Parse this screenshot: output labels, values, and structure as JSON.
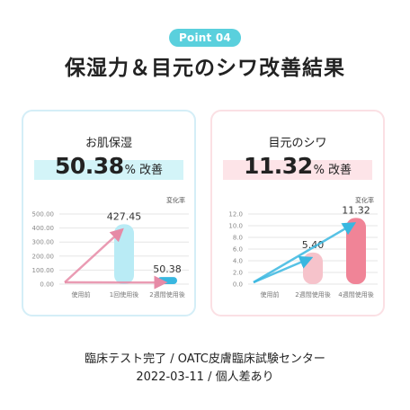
{
  "header": {
    "badge": "Point 04",
    "title": "保湿力＆目元のシワ改善結果"
  },
  "colors": {
    "teal": "#5ad0dd",
    "blue_bar": "#b9ebf5",
    "blue_accent": "#39b7e0",
    "pink_bar": "#f6b8c2",
    "red_bar": "#f08497",
    "arrow": "#e68aa6"
  },
  "cards": [
    {
      "title": "お肌保湿",
      "metric_value": "50.38",
      "metric_unit": "%",
      "metric_suffix": "改善",
      "unit_label": "変化率",
      "chart_data": {
        "type": "bar",
        "title": "",
        "xlabel": "",
        "ylabel": "",
        "categories": [
          "使用前",
          "1回使用後",
          "2週間使用後"
        ],
        "values": [
          0,
          427.45,
          50.38
        ],
        "data_labels": [
          "",
          "427.45",
          "50.38"
        ],
        "y_ticks": [
          "500.00",
          "400.00",
          "300.00",
          "200.00",
          "100.00",
          "0.00"
        ],
        "ylim": [
          0,
          500
        ],
        "grid": true,
        "bar_colors": [
          "#b9ebf5",
          "#b9ebf5",
          "#39b7e0"
        ]
      }
    },
    {
      "title": "目元のシワ",
      "metric_value": "11.32",
      "metric_unit": "%",
      "metric_suffix": "改善",
      "unit_label": "変化率",
      "chart_data": {
        "type": "bar",
        "title": "",
        "xlabel": "",
        "ylabel": "",
        "categories": [
          "使用前",
          "2週間使用後",
          "4週間使用後"
        ],
        "values": [
          0,
          5.4,
          11.32
        ],
        "data_labels": [
          "",
          "5.40",
          "11.32"
        ],
        "y_ticks": [
          "12.0",
          "10.0",
          "8.0",
          "6.0",
          "4.0",
          "2.0",
          "0.0"
        ],
        "ylim": [
          0,
          12
        ],
        "grid": true,
        "bar_colors": [
          "#fbd9de",
          "#f6c3cb",
          "#f08497"
        ]
      }
    }
  ],
  "footer": {
    "line1": "臨床テスト完了 / OATC皮膚臨床試験センター",
    "line2": "2022-03-11 / 個人差あり"
  }
}
